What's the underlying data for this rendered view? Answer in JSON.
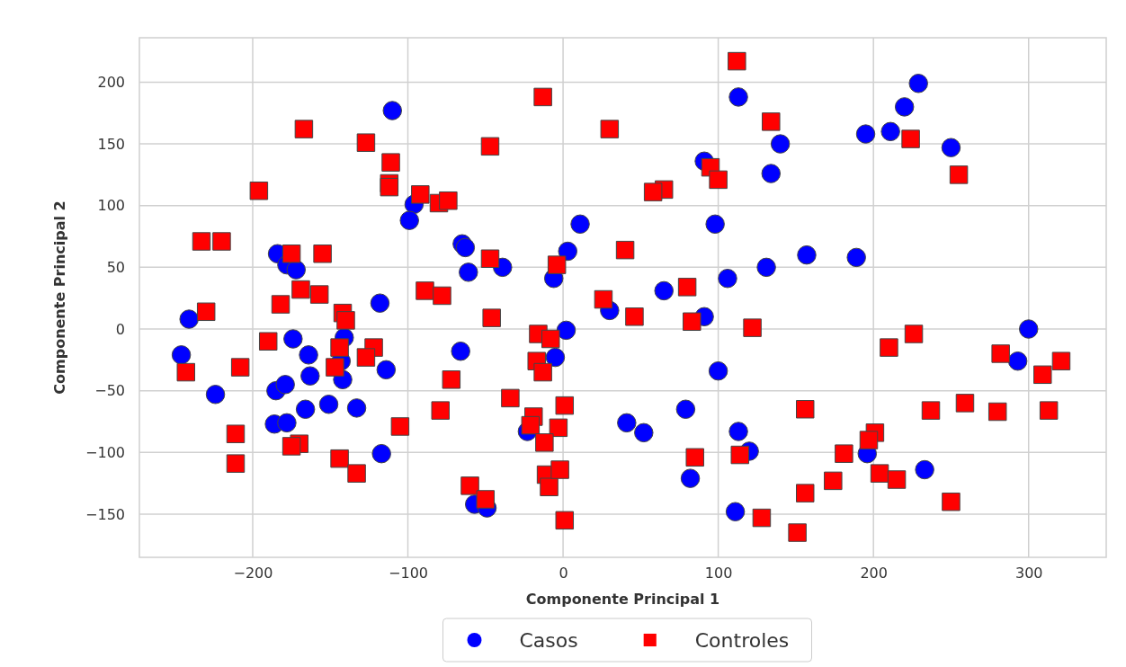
{
  "chart_data": {
    "type": "scatter",
    "xlabel": "Componente Principal 1",
    "ylabel": "Componente Principal 2",
    "xlim": [
      -273,
      350
    ],
    "ylim": [
      -185,
      236
    ],
    "xticks": [
      {
        "value": -200,
        "label": "−200"
      },
      {
        "value": -100,
        "label": "−100"
      },
      0,
      100,
      200,
      300
    ],
    "yticks": [
      {
        "value": -150,
        "label": "−150"
      },
      {
        "value": -100,
        "label": "−100"
      },
      {
        "value": -50,
        "label": "−50"
      },
      0,
      50,
      100,
      150,
      200
    ],
    "grid": true,
    "legend": "bottom",
    "series": [
      {
        "name": "Casos",
        "color": "#0000ff",
        "marker": "circle",
        "x": [
          -246,
          -241,
          -224,
          -184,
          -178,
          -172,
          -174,
          -164,
          -163,
          -185,
          -179,
          -186,
          -178,
          -166,
          -151,
          -133,
          -141,
          -143,
          -142,
          -118,
          -114,
          -117,
          -66,
          -57,
          -49,
          -23,
          -5,
          2,
          -110,
          -96,
          -99,
          -65,
          -63,
          -61,
          -39,
          -6,
          3,
          113,
          140,
          134,
          195,
          211,
          220,
          229,
          250,
          91,
          98,
          11,
          106,
          131,
          157,
          189,
          65,
          30,
          91,
          100,
          79,
          41,
          52,
          113,
          120,
          82,
          111,
          196,
          233,
          293,
          300
        ],
        "values": [
          -21,
          8,
          -53,
          61,
          52,
          48,
          -8,
          -21,
          -38,
          -50,
          -45,
          -77,
          -76,
          -65,
          -61,
          -64,
          -7,
          -26,
          -41,
          21,
          -33,
          -101,
          -18,
          -142,
          -145,
          -83,
          -23,
          -1,
          177,
          101,
          88,
          69,
          66,
          46,
          50,
          41,
          63,
          188,
          150,
          126,
          158,
          160,
          180,
          199,
          147,
          136,
          85,
          85,
          41,
          50,
          60,
          58,
          31,
          15,
          10,
          -34,
          -65,
          -76,
          -84,
          -83,
          -99,
          -121,
          -148,
          -101,
          -114,
          -26,
          0
        ]
      },
      {
        "name": "Controles",
        "color": "#ff0000",
        "marker": "square",
        "x": [
          -13,
          -167,
          -127,
          -111,
          -112,
          -112,
          -47,
          -196,
          -92,
          -80,
          -74,
          -233,
          -220,
          -175,
          -155,
          -47,
          -4,
          -169,
          -157,
          -182,
          -89,
          -78,
          -230,
          -142,
          -140,
          -190,
          -144,
          -122,
          -127,
          -208,
          -243,
          -147,
          -72,
          -46,
          -16,
          -8,
          -17,
          -13,
          -34,
          -79,
          -211,
          -211,
          -170,
          -175,
          -105,
          -144,
          -133,
          -19,
          -21,
          -3,
          -12,
          -11,
          -9,
          -2,
          1,
          -60,
          -50,
          1,
          112,
          134,
          30,
          224,
          255,
          95,
          100,
          65,
          58,
          40,
          80,
          26,
          46,
          83,
          122,
          210,
          226,
          282,
          321,
          309,
          156,
          237,
          259,
          280,
          313,
          201,
          197,
          181,
          85,
          114,
          204,
          215,
          174,
          156,
          250,
          128,
          151
        ],
        "values": [
          188,
          162,
          151,
          135,
          118,
          115,
          148,
          112,
          109,
          102,
          104,
          71,
          71,
          61,
          61,
          57,
          52,
          32,
          28,
          20,
          31,
          27,
          14,
          13,
          7,
          -10,
          -15,
          -15,
          -23,
          -31,
          -35,
          -31,
          -41,
          9,
          -4,
          -8,
          -26,
          -35,
          -56,
          -66,
          -85,
          -109,
          -93,
          -95,
          -79,
          -105,
          -117,
          -71,
          -78,
          -80,
          -92,
          -118,
          -128,
          -114,
          -62,
          -127,
          -138,
          -155,
          217,
          168,
          162,
          154,
          125,
          131,
          121,
          113,
          111,
          64,
          34,
          24,
          10,
          6,
          1,
          -15,
          -4,
          -20,
          -26,
          -37,
          -65,
          -66,
          -60,
          -67,
          -66,
          -84,
          -90,
          -101,
          -104,
          -102,
          -117,
          -122,
          -123,
          -133,
          -140,
          -153,
          -165
        ]
      }
    ]
  }
}
